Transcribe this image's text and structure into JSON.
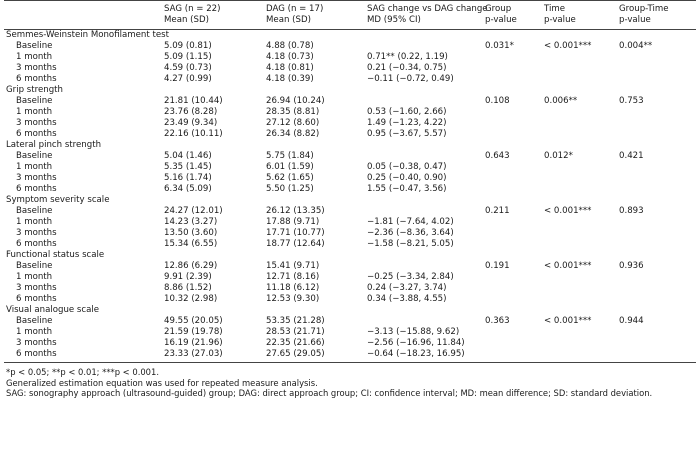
{
  "header": {
    "row1": [
      "",
      "SAG (n = 22)",
      "DAG (n = 17)",
      "SAG change vs DAG change",
      "Group",
      "Time",
      "Group-Time"
    ],
    "row2": [
      "",
      "Mean (SD)",
      "Mean (SD)",
      "MD (95% CI)",
      "p-value",
      "p-value",
      "p-value"
    ]
  },
  "sections": [
    {
      "title": "Semmes-Weinstein Monofilament test",
      "rows": [
        {
          "label": "Baseline",
          "sag": "5.09 (0.81)",
          "dag": "4.88 (0.78)",
          "md": "",
          "group_p": "0.031*",
          "time_p": "< 0.001***",
          "gt_p": "0.004**"
        },
        {
          "label": "1 month",
          "sag": "5.09 (1.15)",
          "dag": "4.18 (0.73)",
          "md": "0.71** (0.22, 1.19)",
          "group_p": "",
          "time_p": "",
          "gt_p": ""
        },
        {
          "label": "3 months",
          "sag": "4.59 (0.73)",
          "dag": "4.18 (0.81)",
          "md": "0.21 (−0.34, 0.75)",
          "group_p": "",
          "time_p": "",
          "gt_p": ""
        },
        {
          "label": "6 months",
          "sag": "4.27 (0.99)",
          "dag": "4.18 (0.39)",
          "md": "−0.11 (−0.72, 0.49)",
          "group_p": "",
          "time_p": "",
          "gt_p": ""
        }
      ]
    },
    {
      "title": "Grip strength",
      "rows": [
        {
          "label": "Baseline",
          "sag": "21.81 (10.44)",
          "dag": "26.94 (10.24)",
          "md": "",
          "group_p": "0.108",
          "time_p": "0.006**",
          "gt_p": "0.753"
        },
        {
          "label": "1 month",
          "sag": "23.76 (8.28)",
          "dag": "28.35 (8.81)",
          "md": "0.53 (−1.60, 2.66)",
          "group_p": "",
          "time_p": "",
          "gt_p": ""
        },
        {
          "label": "3 months",
          "sag": "23.49 (9.34)",
          "dag": "27.12 (8.60)",
          "md": "1.49 (−1.23, 4.22)",
          "group_p": "",
          "time_p": "",
          "gt_p": ""
        },
        {
          "label": "6 months",
          "sag": "22.16 (10.11)",
          "dag": "26.34 (8.82)",
          "md": "0.95 (−3.67, 5.57)",
          "group_p": "",
          "time_p": "",
          "gt_p": ""
        }
      ]
    },
    {
      "title": "Lateral pinch strength",
      "rows": [
        {
          "label": "Baseline",
          "sag": "5.04 (1.46)",
          "dag": "5.75 (1.84)",
          "md": "",
          "group_p": "0.643",
          "time_p": "0.012*",
          "gt_p": "0.421"
        },
        {
          "label": "1 month",
          "sag": "5.35 (1.45)",
          "dag": "6.01 (1.59)",
          "md": "0.05 (−0.38, 0.47)",
          "group_p": "",
          "time_p": "",
          "gt_p": ""
        },
        {
          "label": "3 months",
          "sag": "5.16 (1.74)",
          "dag": "5.62 (1.65)",
          "md": "0.25 (−0.40, 0.90)",
          "group_p": "",
          "time_p": "",
          "gt_p": ""
        },
        {
          "label": "6 months",
          "sag": "6.34 (5.09)",
          "dag": "5.50 (1.25)",
          "md": "1.55 (−0.47, 3.56)",
          "group_p": "",
          "time_p": "",
          "gt_p": ""
        }
      ]
    },
    {
      "title": "Symptom severity scale",
      "rows": [
        {
          "label": "Baseline",
          "sag": "24.27 (12.01)",
          "dag": "26.12 (13.35)",
          "md": "",
          "group_p": "0.211",
          "time_p": "< 0.001***",
          "gt_p": "0.893"
        },
        {
          "label": "1 month",
          "sag": "14.23 (3.27)",
          "dag": "17.88 (9.71)",
          "md": "−1.81 (−7.64, 4.02)",
          "group_p": "",
          "time_p": "",
          "gt_p": ""
        },
        {
          "label": "3 months",
          "sag": "13.50 (3.60)",
          "dag": "17.71 (10.77)",
          "md": "−2.36 (−8.36, 3.64)",
          "group_p": "",
          "time_p": "",
          "gt_p": ""
        },
        {
          "label": "6 months",
          "sag": "15.34 (6.55)",
          "dag": "18.77 (12.64)",
          "md": "−1.58 (−8.21, 5.05)",
          "group_p": "",
          "time_p": "",
          "gt_p": ""
        }
      ]
    },
    {
      "title": "Functional status scale",
      "rows": [
        {
          "label": "Baseline",
          "sag": "12.86 (6.29)",
          "dag": "15.41 (9.71)",
          "md": "",
          "group_p": "0.191",
          "time_p": "< 0.001***",
          "gt_p": "0.936"
        },
        {
          "label": "1 month",
          "sag": "9.91 (2.39)",
          "dag": "12.71 (8.16)",
          "md": "−0.25 (−3.34, 2.84)",
          "group_p": "",
          "time_p": "",
          "gt_p": ""
        },
        {
          "label": "3 months",
          "sag": "8.86 (1.52)",
          "dag": "11.18 (6.12)",
          "md": "0.24 (−3.27, 3.74)",
          "group_p": "",
          "time_p": "",
          "gt_p": ""
        },
        {
          "label": "6 months",
          "sag": "10.32 (2.98)",
          "dag": "12.53 (9.30)",
          "md": "0.34 (−3.88, 4.55)",
          "group_p": "",
          "time_p": "",
          "gt_p": ""
        }
      ]
    },
    {
      "title": "Visual analogue scale",
      "rows": [
        {
          "label": "Baseline",
          "sag": "49.55 (20.05)",
          "dag": "53.35 (21.28)",
          "md": "",
          "group_p": "0.363",
          "time_p": "< 0.001***",
          "gt_p": "0.944"
        },
        {
          "label": "1 month",
          "sag": "21.59 (19.78)",
          "dag": "28.53 (21.71)",
          "md": "−3.13 (−15.88, 9.62)",
          "group_p": "",
          "time_p": "",
          "gt_p": ""
        },
        {
          "label": "3 months",
          "sag": "16.19 (21.96)",
          "dag": "22.35 (21.66)",
          "md": "−2.56 (−16.96, 11.84)",
          "group_p": "",
          "time_p": "",
          "gt_p": ""
        },
        {
          "label": "6 months",
          "sag": "23.33 (27.03)",
          "dag": "27.65 (29.05)",
          "md": "−0.64 (−18.23, 16.95)",
          "group_p": "",
          "time_p": "",
          "gt_p": ""
        }
      ]
    }
  ],
  "footnotes": [
    "*p < 0.05; **p < 0.01; ***p < 0.001.",
    "Generalized estimation equation was used for repeated measure analysis.",
    "SAG: sonography approach (ultrasound-guided) group; DAG: direct approach group; CI: confidence interval; MD: mean difference; SD: standard deviation."
  ]
}
